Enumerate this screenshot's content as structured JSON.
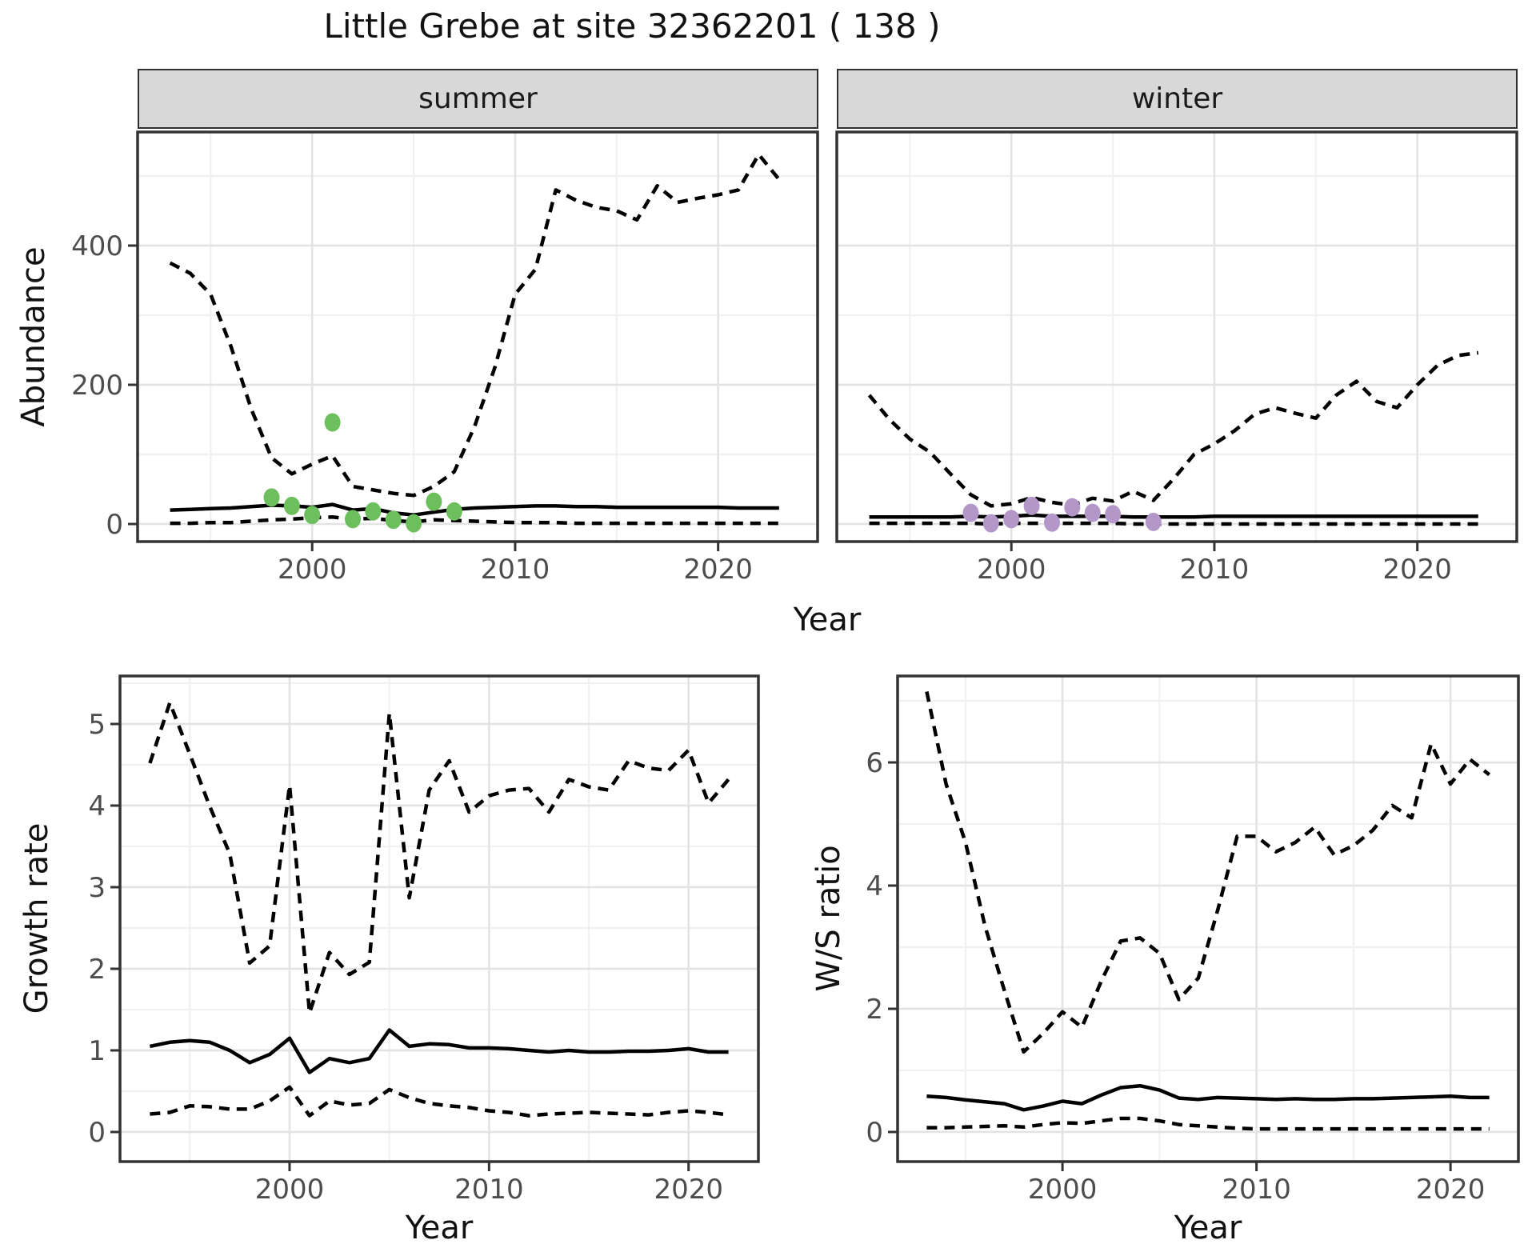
{
  "title": "Little Grebe at site 32362201 ( 138 )",
  "facets": [
    {
      "label": "summer"
    },
    {
      "label": "winter"
    }
  ],
  "axes": {
    "abundance": "Abundance",
    "growth_rate": "Growth rate",
    "ws_ratio": "W/S ratio",
    "year": "Year"
  },
  "colors": {
    "summer_points": "#6dbe5c",
    "winter_points": "#b397c8",
    "line": "#000000",
    "grid_major": "#e3e3e3",
    "grid_minor": "#f0f0f0",
    "strip_bg": "#d8d8d8",
    "panel_border": "#333333",
    "tick_text": "#4d4d4d",
    "title_text": "#111111"
  },
  "chart_data": [
    {
      "id": "abundance-summer",
      "type": "line",
      "facet": "summer",
      "xlabel": "Year",
      "ylabel": "Abundance",
      "xlim": [
        1991.4,
        2024.9
      ],
      "ylim": [
        -25,
        563
      ],
      "grid": true,
      "legend_position": "none",
      "x_tick_values": [
        2000,
        2010,
        2020
      ],
      "x_tick_labels": [
        "2000",
        "2010",
        "2020"
      ],
      "x_minor": [
        1995,
        2005,
        2015
      ],
      "y_tick_values": [
        0,
        200,
        400
      ],
      "y_tick_labels": [
        "0",
        "200",
        "400"
      ],
      "y_minor": [
        100,
        300,
        500
      ],
      "x_years": [
        1993,
        1994,
        1995,
        1996,
        1997,
        1998,
        1999,
        2000,
        2001,
        2002,
        2003,
        2004,
        2005,
        2006,
        2007,
        2008,
        2009,
        2010,
        2011,
        2012,
        2013,
        2014,
        2015,
        2016,
        2017,
        2018,
        2019,
        2020,
        2021,
        2022,
        2023
      ],
      "series": [
        {
          "name": "upper_95ci",
          "style": "dashed",
          "values": [
            375,
            360,
            330,
            255,
            165,
            95,
            72,
            86,
            98,
            54,
            49,
            44,
            41,
            54,
            75,
            140,
            225,
            330,
            366,
            480,
            465,
            455,
            450,
            437,
            486,
            462,
            468,
            473,
            480,
            531,
            495
          ]
        },
        {
          "name": "estimate",
          "style": "solid",
          "values": [
            20,
            21,
            22,
            23,
            25,
            27,
            26,
            24,
            28,
            20,
            22,
            16,
            13,
            17,
            21,
            23,
            24,
            25,
            26,
            26,
            25,
            25,
            24,
            24,
            24,
            24,
            24,
            24,
            23,
            23,
            23
          ]
        },
        {
          "name": "lower_95ci",
          "style": "dashed",
          "values": [
            1,
            1,
            2,
            2,
            4,
            6,
            7,
            9,
            10,
            7,
            8,
            5,
            3,
            6,
            5,
            4,
            3,
            2,
            2,
            2,
            1,
            1,
            1,
            1,
            1,
            1,
            1,
            1,
            1,
            1,
            1
          ]
        }
      ],
      "points": {
        "name": "observed_counts_summer",
        "color_key": "summer_points",
        "x": [
          1998,
          1999,
          2000,
          2001,
          2002,
          2003,
          2004,
          2005,
          2006,
          2007
        ],
        "y": [
          38,
          26,
          13,
          146,
          7,
          18,
          6,
          1,
          32,
          18
        ]
      }
    },
    {
      "id": "abundance-winter",
      "type": "line",
      "facet": "winter",
      "xlabel": "Year",
      "ylabel": "Abundance",
      "xlim": [
        1991.4,
        2024.9
      ],
      "ylim": [
        -25,
        563
      ],
      "grid": true,
      "legend_position": "none",
      "x_tick_values": [
        2000,
        2010,
        2020
      ],
      "x_tick_labels": [
        "2000",
        "2010",
        "2020"
      ],
      "x_minor": [
        1995,
        2005,
        2015
      ],
      "y_tick_values": [
        0,
        200,
        400
      ],
      "y_tick_labels": [],
      "y_minor": [
        100,
        300,
        500
      ],
      "x_years": [
        1993,
        1994,
        1995,
        1996,
        1997,
        1998,
        1999,
        2000,
        2001,
        2002,
        2003,
        2004,
        2005,
        2006,
        2007,
        2008,
        2009,
        2010,
        2011,
        2012,
        2013,
        2014,
        2015,
        2016,
        2017,
        2018,
        2019,
        2020,
        2021,
        2022,
        2023
      ],
      "series": [
        {
          "name": "upper_95ci",
          "style": "dashed",
          "values": [
            185,
            150,
            122,
            103,
            72,
            42,
            26,
            29,
            38,
            31,
            27,
            37,
            33,
            47,
            34,
            65,
            100,
            115,
            134,
            158,
            167,
            159,
            152,
            185,
            205,
            176,
            167,
            200,
            228,
            242,
            246
          ]
        },
        {
          "name": "estimate",
          "style": "solid",
          "values": [
            10,
            10,
            10,
            10,
            10,
            11,
            10,
            11,
            13,
            11,
            11,
            11,
            11,
            10,
            10,
            10,
            10,
            11,
            11,
            11,
            11,
            11,
            11,
            11,
            11,
            11,
            11,
            11,
            11,
            11,
            11
          ]
        },
        {
          "name": "lower_95ci",
          "style": "dashed",
          "values": [
            1,
            1,
            1,
            1,
            1,
            1,
            0,
            1,
            1,
            1,
            1,
            1,
            1,
            0,
            0,
            0,
            0,
            0,
            0,
            0,
            0,
            0,
            0,
            0,
            0,
            0,
            0,
            0,
            0,
            0,
            0
          ]
        }
      ],
      "points": {
        "name": "observed_counts_winter",
        "color_key": "winter_points",
        "x": [
          1998,
          1999,
          2000,
          2001,
          2002,
          2003,
          2004,
          2005,
          2007
        ],
        "y": [
          16,
          1,
          7,
          26,
          2,
          24,
          16,
          14,
          3
        ]
      }
    },
    {
      "id": "growth-rate",
      "type": "line",
      "facet": null,
      "xlabel": "Year",
      "ylabel": "Growth rate",
      "xlim": [
        1991.5,
        2023.5
      ],
      "ylim": [
        -0.36,
        5.59
      ],
      "grid": true,
      "legend_position": "none",
      "x_tick_values": [
        2000,
        2010,
        2020
      ],
      "x_tick_labels": [
        "2000",
        "2010",
        "2020"
      ],
      "x_minor": [
        1995,
        2005,
        2015
      ],
      "y_tick_values": [
        0,
        1,
        2,
        3,
        4,
        5
      ],
      "y_tick_labels": [
        "0",
        "1",
        "2",
        "3",
        "4",
        "5"
      ],
      "y_minor": [
        0.5,
        1.5,
        2.5,
        3.5,
        4.5,
        5.5
      ],
      "x_years": [
        1993,
        1994,
        1995,
        1996,
        1997,
        1998,
        1999,
        2000,
        2001,
        2002,
        2003,
        2004,
        2005,
        2006,
        2007,
        2008,
        2009,
        2010,
        2011,
        2012,
        2013,
        2014,
        2015,
        2016,
        2017,
        2018,
        2019,
        2020,
        2021,
        2022
      ],
      "series": [
        {
          "name": "upper_95ci",
          "style": "dashed",
          "values": [
            4.52,
            5.26,
            4.63,
            3.99,
            3.41,
            2.07,
            2.28,
            4.25,
            1.46,
            2.2,
            1.93,
            2.08,
            5.13,
            2.87,
            4.19,
            4.55,
            3.92,
            4.12,
            4.19,
            4.21,
            3.92,
            4.32,
            4.23,
            4.19,
            4.55,
            4.46,
            4.43,
            4.68,
            4.03,
            4.32
          ]
        },
        {
          "name": "estimate",
          "style": "solid",
          "values": [
            1.05,
            1.1,
            1.12,
            1.1,
            1.0,
            0.85,
            0.95,
            1.15,
            0.73,
            0.9,
            0.85,
            0.9,
            1.25,
            1.05,
            1.08,
            1.07,
            1.03,
            1.03,
            1.02,
            1.0,
            0.98,
            1.0,
            0.98,
            0.98,
            0.99,
            0.99,
            1.0,
            1.02,
            0.98,
            0.98
          ]
        },
        {
          "name": "lower_95ci",
          "style": "dashed",
          "values": [
            0.22,
            0.24,
            0.32,
            0.31,
            0.28,
            0.28,
            0.38,
            0.55,
            0.2,
            0.38,
            0.33,
            0.35,
            0.52,
            0.42,
            0.35,
            0.32,
            0.3,
            0.26,
            0.24,
            0.2,
            0.22,
            0.23,
            0.24,
            0.23,
            0.22,
            0.21,
            0.24,
            0.26,
            0.24,
            0.21
          ]
        }
      ],
      "points": null
    },
    {
      "id": "ws-ratio",
      "type": "line",
      "facet": null,
      "xlabel": "Year",
      "ylabel": "W/S ratio",
      "xlim": [
        1991.5,
        2023.5
      ],
      "ylim": [
        -0.48,
        7.4
      ],
      "grid": true,
      "legend_position": "none",
      "x_tick_values": [
        2000,
        2010,
        2020
      ],
      "x_tick_labels": [
        "2000",
        "2010",
        "2020"
      ],
      "x_minor": [
        1995,
        2005,
        2015
      ],
      "y_tick_values": [
        0,
        2,
        4,
        6
      ],
      "y_tick_labels": [
        "0",
        "2",
        "4",
        "6"
      ],
      "y_minor": [
        1,
        3,
        5,
        7
      ],
      "x_years": [
        1993,
        1994,
        1995,
        1996,
        1997,
        1998,
        1999,
        2000,
        2001,
        2002,
        2003,
        2004,
        2005,
        2006,
        2007,
        2008,
        2009,
        2010,
        2011,
        2012,
        2013,
        2014,
        2015,
        2016,
        2017,
        2018,
        2019,
        2020,
        2021,
        2022
      ],
      "series": [
        {
          "name": "upper_95ci",
          "style": "dashed",
          "values": [
            7.15,
            5.65,
            4.7,
            3.35,
            2.3,
            1.3,
            1.6,
            1.95,
            1.7,
            2.45,
            3.1,
            3.15,
            2.9,
            2.15,
            2.5,
            3.6,
            4.8,
            4.8,
            4.55,
            4.7,
            4.95,
            4.5,
            4.65,
            4.9,
            5.3,
            5.1,
            6.3,
            5.65,
            6.05,
            5.8
          ]
        },
        {
          "name": "estimate",
          "style": "solid",
          "values": [
            0.58,
            0.56,
            0.52,
            0.49,
            0.46,
            0.36,
            0.42,
            0.5,
            0.46,
            0.6,
            0.72,
            0.75,
            0.68,
            0.55,
            0.53,
            0.56,
            0.55,
            0.54,
            0.53,
            0.54,
            0.53,
            0.53,
            0.54,
            0.54,
            0.55,
            0.56,
            0.57,
            0.58,
            0.56,
            0.56
          ]
        },
        {
          "name": "lower_95ci",
          "style": "dashed",
          "values": [
            0.07,
            0.07,
            0.08,
            0.09,
            0.1,
            0.08,
            0.12,
            0.15,
            0.14,
            0.18,
            0.22,
            0.22,
            0.18,
            0.12,
            0.1,
            0.08,
            0.06,
            0.05,
            0.05,
            0.05,
            0.05,
            0.05,
            0.05,
            0.05,
            0.05,
            0.05,
            0.05,
            0.05,
            0.05,
            0.05
          ]
        }
      ],
      "points": null
    }
  ]
}
